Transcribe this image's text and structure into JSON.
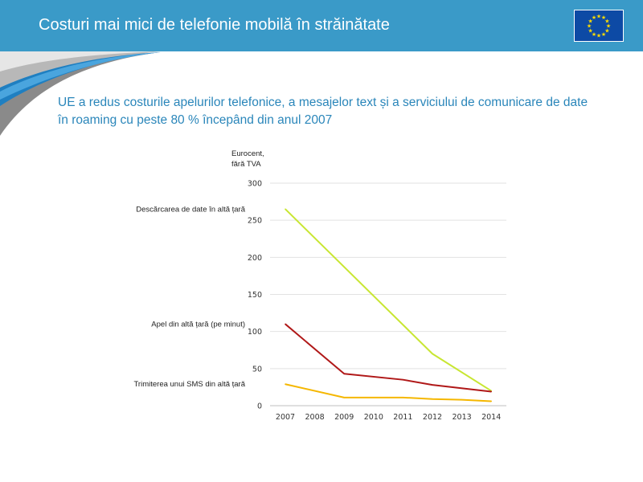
{
  "header": {
    "title": "Costuri mai mici de telefonie mobilă în străinătate",
    "flag_icon": "eu-flag-icon"
  },
  "subtitle": "UE a redus costurile apelurilor telefonice, a mesajelor text și a serviciului de comunicare de date în roaming cu peste 80 % începând din anul 2007",
  "colors": {
    "header_bg": "#3a9ac8",
    "subtitle": "#2a86ba",
    "data_series": "#c8e632",
    "call_series": "#b01818",
    "sms_series": "#f5b700"
  },
  "chart_data": {
    "type": "line",
    "ylabel": "Eurocent,\nfără TVA",
    "ylabel_lines": [
      "Eurocent,",
      "fără TVA"
    ],
    "x": [
      "2007",
      "2008",
      "2009",
      "2010",
      "2011",
      "2012",
      "2013",
      "2014"
    ],
    "ylim": [
      0,
      300
    ],
    "yticks": [
      0,
      50,
      100,
      150,
      200,
      250,
      300
    ],
    "grid": true,
    "legend": "left (labels beside series)",
    "series": [
      {
        "name": "Descărcarea de date în altă țară",
        "color": "#c8e632",
        "values": [
          265,
          null,
          null,
          null,
          null,
          70,
          null,
          20
        ]
      },
      {
        "name": "Apel din altă țară (pe minut)",
        "color": "#b01818",
        "values": [
          110,
          null,
          43,
          null,
          35,
          28,
          null,
          19
        ]
      },
      {
        "name": "Trimiterea unui SMS din altă țară",
        "color": "#f5b700",
        "values": [
          29,
          null,
          11,
          null,
          11,
          9,
          8,
          6
        ]
      }
    ]
  }
}
